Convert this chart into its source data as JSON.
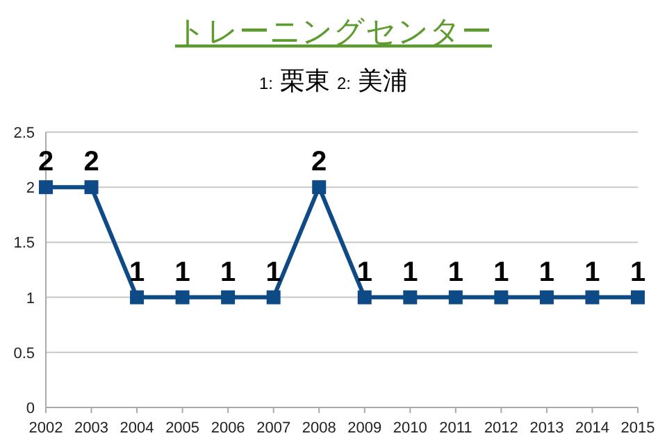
{
  "chart_data": {
    "type": "line",
    "title": "トレーニングセンター",
    "subtitle": "1: 栗東   2: 美浦",
    "x": [
      2002,
      2003,
      2004,
      2005,
      2006,
      2007,
      2008,
      2009,
      2010,
      2011,
      2012,
      2013,
      2014,
      2015
    ],
    "series": [
      {
        "color": "#0e4a85",
        "values": [
          2,
          2,
          1,
          1,
          1,
          1,
          2,
          1,
          1,
          1,
          1,
          1,
          1,
          1
        ]
      }
    ],
    "xlim": [
      2002,
      2015
    ],
    "xticks": [
      2002,
      2003,
      2004,
      2005,
      2006,
      2007,
      2008,
      2009,
      2010,
      2011,
      2012,
      2013,
      2014,
      2015
    ],
    "ylim": [
      0,
      2.5
    ],
    "yticks": [
      0,
      0.5,
      1,
      1.5,
      2,
      2.5
    ],
    "grid": "y",
    "marker": "square",
    "line_style": "solid",
    "data_labels": true
  }
}
